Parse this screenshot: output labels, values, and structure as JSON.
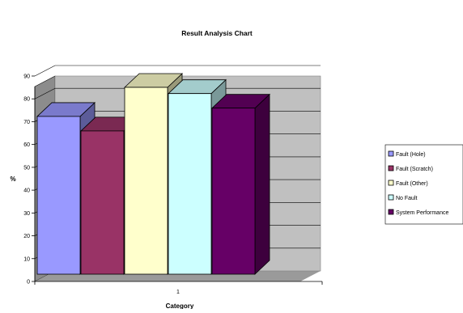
{
  "chart_data": {
    "type": "bar",
    "title": "Result Analysis Chart",
    "xlabel": "Category",
    "ylabel": "%",
    "categories": [
      "1"
    ],
    "ylim": [
      0,
      90
    ],
    "yticks": [
      "0",
      "10",
      "20",
      "30",
      "40",
      "50",
      "60",
      "70",
      "80",
      "90"
    ],
    "grid": true,
    "three_d": true,
    "legend_position": "right",
    "series": [
      {
        "name": "Fault (Hole)",
        "values": [
          76
        ],
        "color": "#9999FF"
      },
      {
        "name": "Fault (Scratch)",
        "values": [
          69
        ],
        "color": "#993366"
      },
      {
        "name": "Fault (Other)",
        "values": [
          90
        ],
        "color": "#FFFFCC"
      },
      {
        "name": "No Fault",
        "values": [
          87
        ],
        "color": "#CCFFFF"
      },
      {
        "name": "System Performance",
        "values": [
          80
        ],
        "color": "#660066"
      }
    ],
    "plot_background": "#C0C0C0"
  }
}
